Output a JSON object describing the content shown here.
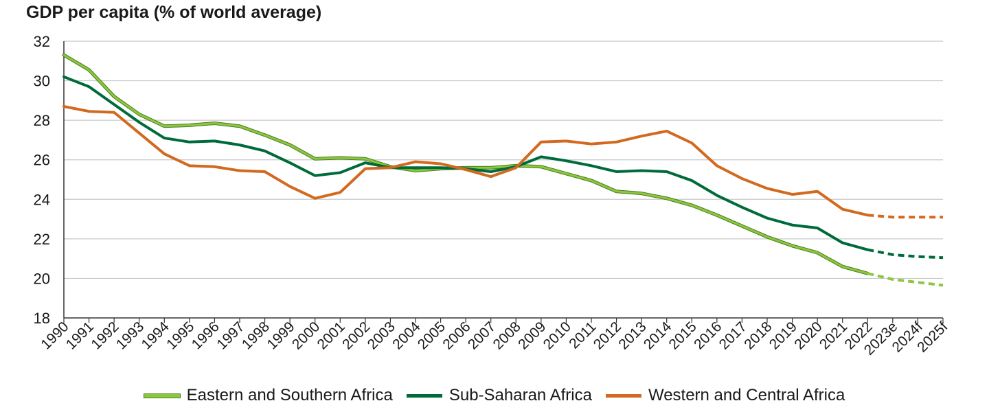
{
  "chart_data": {
    "type": "line",
    "title": "GDP per capita (% of world average)",
    "xlabel": "",
    "ylabel": "",
    "ylim": [
      18,
      32
    ],
    "yticks": [
      18,
      20,
      22,
      24,
      26,
      28,
      30,
      32
    ],
    "grid": true,
    "legend_position": "bottom",
    "categories": [
      "1990",
      "1991",
      "1992",
      "1993",
      "1994",
      "1995",
      "1996",
      "1997",
      "1998",
      "1999",
      "2000",
      "2001",
      "2002",
      "2003",
      "2004",
      "2005",
      "2006",
      "2007",
      "2008",
      "2009",
      "2010",
      "2011",
      "2012",
      "2013",
      "2014",
      "2015",
      "2016",
      "2017",
      "2018",
      "2019",
      "2020",
      "2021",
      "2022",
      "2023e",
      "2024f",
      "2025f"
    ],
    "forecast_start_index": 32,
    "series": [
      {
        "name": "Eastern and Southern Africa",
        "color": "#8dc63f",
        "outline": "#4a7d1e",
        "values": [
          31.3,
          30.55,
          29.2,
          28.3,
          27.7,
          27.75,
          27.85,
          27.7,
          27.25,
          26.75,
          26.05,
          26.1,
          26.05,
          25.65,
          25.45,
          25.55,
          25.6,
          25.6,
          25.7,
          25.65,
          25.3,
          24.95,
          24.4,
          24.3,
          24.05,
          23.7,
          23.2,
          22.65,
          22.1,
          21.65,
          21.3,
          20.6,
          20.25,
          19.95,
          19.8,
          19.65
        ]
      },
      {
        "name": "Sub-Saharan Africa",
        "color": "#006b3a",
        "values": [
          30.2,
          29.7,
          28.8,
          27.9,
          27.1,
          26.9,
          26.95,
          26.75,
          26.45,
          25.85,
          25.2,
          25.35,
          25.85,
          25.6,
          25.6,
          25.6,
          25.55,
          25.4,
          25.65,
          26.15,
          25.95,
          25.7,
          25.4,
          25.45,
          25.4,
          24.95,
          24.2,
          23.6,
          23.05,
          22.7,
          22.55,
          21.8,
          21.45,
          21.2,
          21.1,
          21.05
        ]
      },
      {
        "name": "Western and Central Africa",
        "color": "#d2691e",
        "values": [
          28.7,
          28.45,
          28.4,
          27.35,
          26.3,
          25.7,
          25.65,
          25.45,
          25.4,
          24.65,
          24.05,
          24.35,
          25.55,
          25.6,
          25.9,
          25.8,
          25.5,
          25.15,
          25.6,
          26.9,
          26.95,
          26.8,
          26.9,
          27.2,
          27.45,
          26.85,
          25.7,
          25.05,
          24.55,
          24.25,
          24.4,
          23.5,
          23.2,
          23.1,
          23.1,
          23.1
        ]
      }
    ]
  }
}
